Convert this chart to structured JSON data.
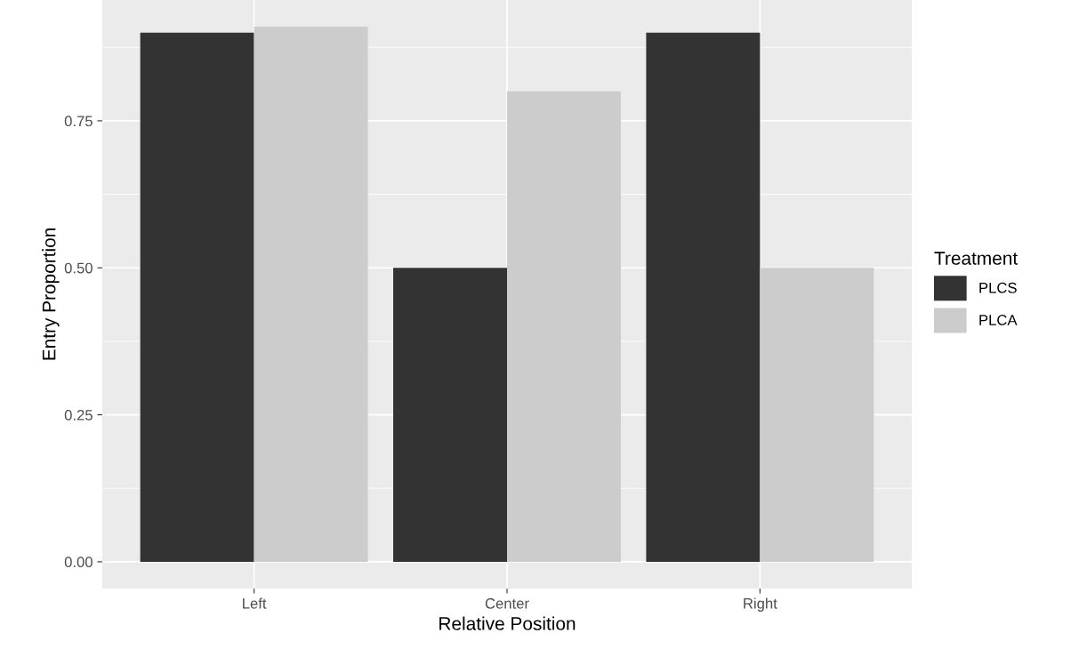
{
  "chart_data": {
    "type": "bar",
    "xlabel": "Relative Position",
    "ylabel": "Entry Proportion",
    "legend_title": "Treatment",
    "categories": [
      "Left",
      "Center",
      "Right"
    ],
    "series": [
      {
        "name": "PLCS",
        "color": "#333333",
        "values": [
          0.9,
          0.5,
          0.9
        ]
      },
      {
        "name": "PLCA",
        "color": "#cccccc",
        "values": [
          0.91,
          0.8,
          0.5
        ]
      }
    ],
    "ylim": [
      -0.0455,
      0.9555
    ],
    "yticks": [
      {
        "value": 0,
        "label": "0.00"
      },
      {
        "value": 0.25,
        "label": "0.25"
      },
      {
        "value": 0.5,
        "label": "0.50"
      },
      {
        "value": 0.75,
        "label": "0.75"
      }
    ],
    "grid": true,
    "legend": "right"
  }
}
